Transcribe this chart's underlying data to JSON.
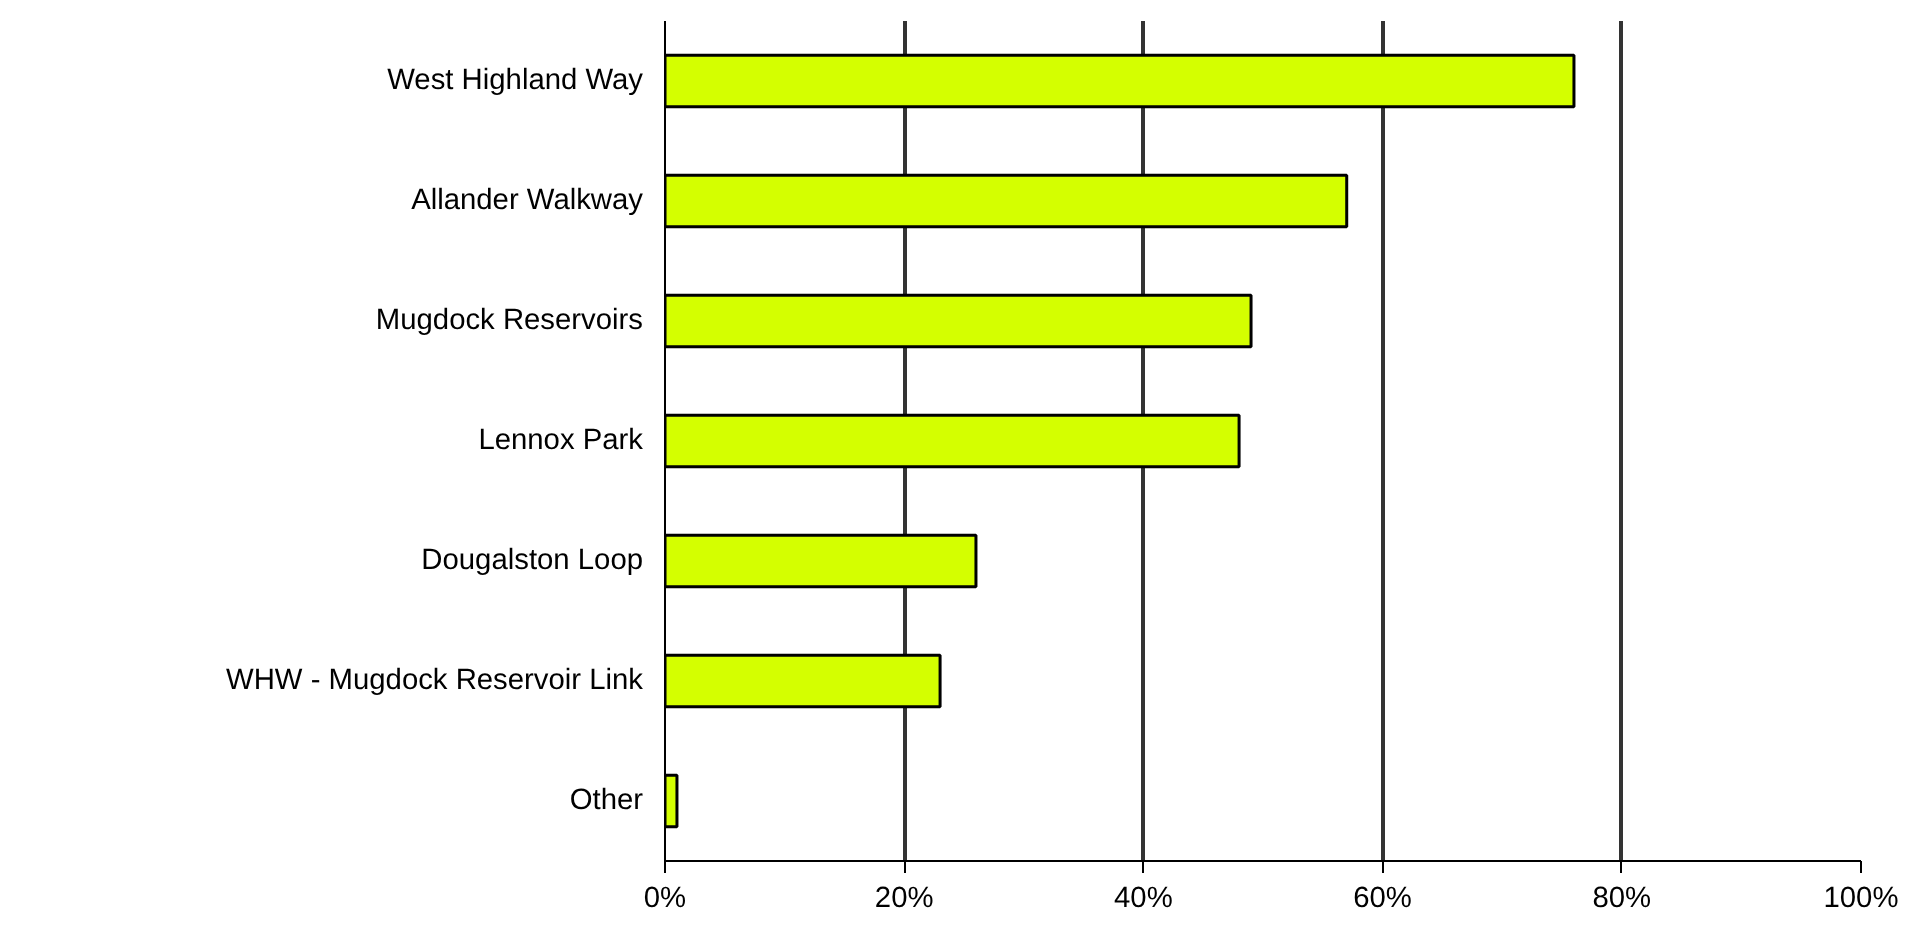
{
  "chart_data": {
    "type": "bar",
    "orientation": "horizontal",
    "categories": [
      "West Highland Way",
      "Allander Walkway",
      "Mugdock Reservoirs",
      "Lennox Park",
      "Dougalston Loop",
      "WHW - Mugdock Reservoir Link",
      "Other"
    ],
    "values": [
      76,
      57,
      49,
      48,
      26,
      23,
      1
    ],
    "color": "#d4ff00",
    "xlim": [
      0,
      100
    ],
    "xticks": [
      {
        "value": 0,
        "label": "0%"
      },
      {
        "value": 20,
        "label": "20%"
      },
      {
        "value": 40,
        "label": "40%"
      },
      {
        "value": 60,
        "label": "60%"
      },
      {
        "value": 80,
        "label": "80%"
      },
      {
        "value": 100,
        "label": "100%"
      }
    ],
    "grid": "x"
  }
}
